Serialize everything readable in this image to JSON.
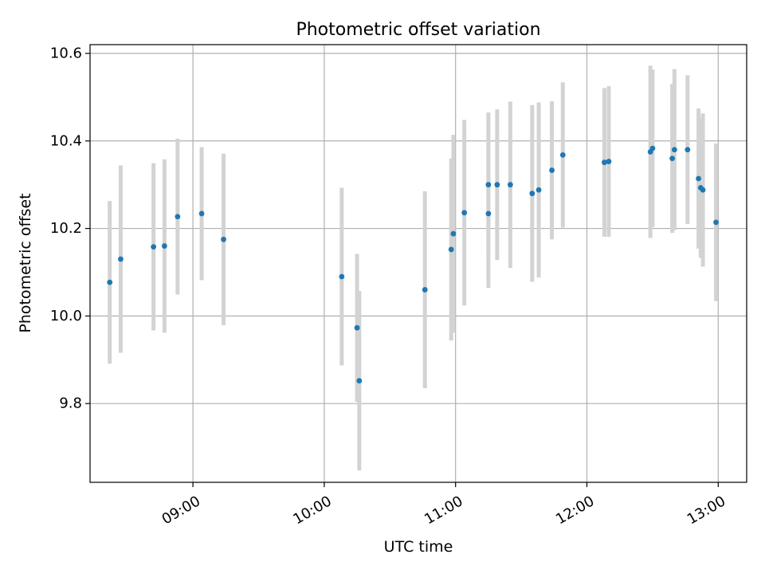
{
  "chart_data": {
    "type": "scatter",
    "title": "Photometric offset variation",
    "xlabel": "UTC time",
    "ylabel": "Photometric offset",
    "x_ticks": [
      "09:00",
      "10:00",
      "11:00",
      "12:00",
      "13:00"
    ],
    "y_ticks": [
      "9.8",
      "10.0",
      "10.2",
      "10.4",
      "10.6"
    ],
    "xlim": [
      "08:13",
      "13:13"
    ],
    "ylim": [
      9.62,
      10.62
    ],
    "grid": true,
    "point_color": "#1f77b4",
    "errorbar_color": "#d3d3d3",
    "points": [
      {
        "x": "08:22",
        "y": 10.077,
        "err": 0.186
      },
      {
        "x": "08:27",
        "y": 10.13,
        "err": 0.214
      },
      {
        "x": "08:42",
        "y": 10.158,
        "err": 0.191
      },
      {
        "x": "08:47",
        "y": 10.16,
        "err": 0.198
      },
      {
        "x": "08:53",
        "y": 10.227,
        "err": 0.178
      },
      {
        "x": "09:04",
        "y": 10.234,
        "err": 0.152
      },
      {
        "x": "09:14",
        "y": 10.175,
        "err": 0.196
      },
      {
        "x": "10:08",
        "y": 10.09,
        "err": 0.203
      },
      {
        "x": "10:15",
        "y": 9.973,
        "err": 0.169
      },
      {
        "x": "10:16",
        "y": 9.852,
        "err": 0.205
      },
      {
        "x": "10:46",
        "y": 10.06,
        "err": 0.225
      },
      {
        "x": "10:58",
        "y": 10.152,
        "err": 0.208
      },
      {
        "x": "10:59",
        "y": 10.188,
        "err": 0.226
      },
      {
        "x": "11:04",
        "y": 10.236,
        "err": 0.212
      },
      {
        "x": "11:15",
        "y": 10.234,
        "err": 0.17
      },
      {
        "x": "11:15",
        "y": 10.3,
        "err": 0.165
      },
      {
        "x": "11:19",
        "y": 10.3,
        "err": 0.172
      },
      {
        "x": "11:25",
        "y": 10.3,
        "err": 0.19
      },
      {
        "x": "11:35",
        "y": 10.28,
        "err": 0.202
      },
      {
        "x": "11:38",
        "y": 10.288,
        "err": 0.2
      },
      {
        "x": "11:44",
        "y": 10.333,
        "err": 0.158
      },
      {
        "x": "11:49",
        "y": 10.368,
        "err": 0.166
      },
      {
        "x": "12:08",
        "y": 10.351,
        "err": 0.17
      },
      {
        "x": "12:10",
        "y": 10.353,
        "err": 0.172
      },
      {
        "x": "12:29",
        "y": 10.375,
        "err": 0.197
      },
      {
        "x": "12:30",
        "y": 10.383,
        "err": 0.18
      },
      {
        "x": "12:39",
        "y": 10.36,
        "err": 0.17
      },
      {
        "x": "12:40",
        "y": 10.38,
        "err": 0.184
      },
      {
        "x": "12:46",
        "y": 10.38,
        "err": 0.17
      },
      {
        "x": "12:51",
        "y": 10.314,
        "err": 0.16
      },
      {
        "x": "12:52",
        "y": 10.293,
        "err": 0.16
      },
      {
        "x": "12:53",
        "y": 10.288,
        "err": 0.175
      },
      {
        "x": "12:59",
        "y": 10.214,
        "err": 0.18
      }
    ]
  }
}
